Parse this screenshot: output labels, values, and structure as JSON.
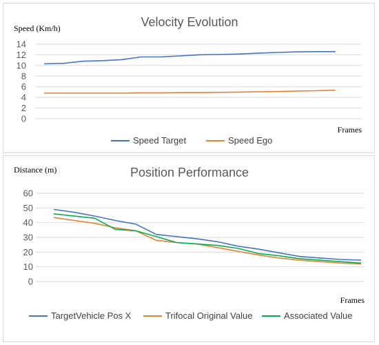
{
  "chart_data": [
    {
      "type": "line",
      "title": "Velocity Evolution",
      "ylabel": "Speed (Km/h)",
      "xlabel": "Frames",
      "ylim": [
        0,
        14
      ],
      "yticks": [
        0,
        2,
        4,
        6,
        8,
        10,
        12,
        14
      ],
      "grid": true,
      "legend_position": "bottom",
      "x": [
        1,
        2,
        3,
        4,
        5,
        6,
        7,
        8,
        9,
        10,
        11,
        12,
        13,
        14,
        15,
        16,
        17
      ],
      "series": [
        {
          "name": "Speed Target",
          "color": "#4472c4",
          "values": [
            10.3,
            10.4,
            10.8,
            10.9,
            11.1,
            11.6,
            11.6,
            11.8,
            12.0,
            12.05,
            12.15,
            12.3,
            12.45,
            12.55,
            12.6,
            12.6,
            null
          ]
        },
        {
          "name": "Speed Ego",
          "color": "#ed7d31",
          "values": [
            4.8,
            4.8,
            4.8,
            4.8,
            4.8,
            4.85,
            4.85,
            4.9,
            4.9,
            4.95,
            5.0,
            5.05,
            5.1,
            5.2,
            5.25,
            5.35,
            null
          ]
        }
      ]
    },
    {
      "type": "line",
      "title": "Position Performance",
      "ylabel": "Distance (m)",
      "xlabel": "Frames",
      "ylim": [
        0,
        60
      ],
      "yticks": [
        0,
        10,
        20,
        30,
        40,
        50,
        60
      ],
      "grid": true,
      "legend_position": "bottom",
      "x": [
        1,
        2,
        3,
        4,
        5,
        6,
        7,
        8,
        9,
        10,
        11,
        12,
        13,
        14,
        15,
        16
      ],
      "series": [
        {
          "name": "TargetVehicle Pos X",
          "color": "#4472c4",
          "values": [
            49,
            47,
            44.5,
            41.5,
            39,
            32,
            30.5,
            29,
            27,
            24,
            22,
            19.5,
            17,
            16,
            15,
            14.5
          ]
        },
        {
          "name": "Trifocal Original Value",
          "color": "#ed7d31",
          "values": [
            43.5,
            41.5,
            39.5,
            36.5,
            34.5,
            28,
            26.5,
            25.5,
            23,
            20.5,
            18,
            16,
            14.5,
            13.5,
            12.5,
            12
          ]
        },
        {
          "name": "Associated Value",
          "color": "#00b050",
          "values": [
            46,
            44.5,
            43,
            35.5,
            34.5,
            30.5,
            26.5,
            25.5,
            24.5,
            22.5,
            19,
            17.5,
            15.5,
            14.5,
            13.5,
            12.5
          ]
        }
      ]
    }
  ]
}
